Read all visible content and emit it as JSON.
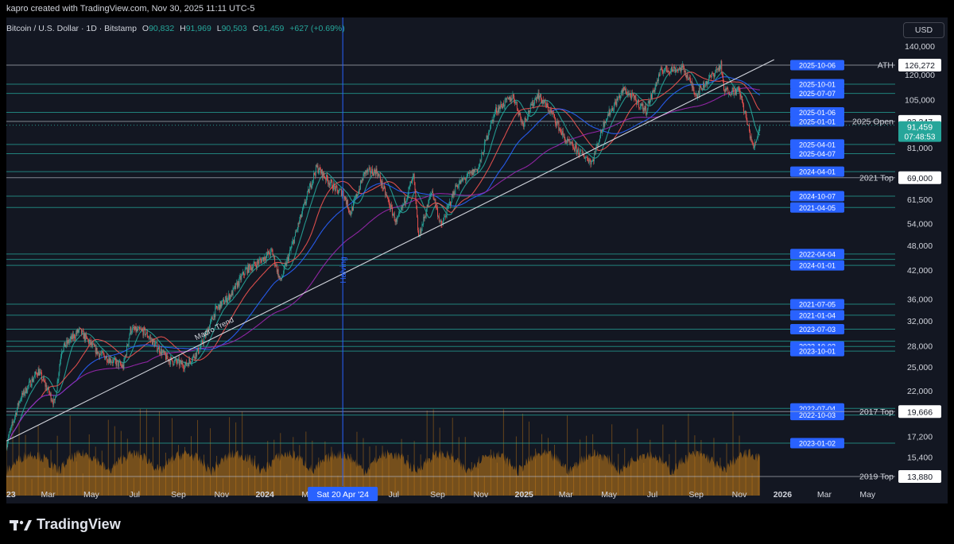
{
  "header": {
    "attribution": "kapro created with TradingView.com, Nov 30, 2025 11:11 UTC-5"
  },
  "legend": {
    "symbol": "Bitcoin / U.S. Dollar · 1D · Bitstamp",
    "o_label": "O",
    "o_val": "90,832",
    "h_label": "H",
    "h_val": "91,969",
    "l_label": "L",
    "l_val": "90,503",
    "c_label": "C",
    "c_val": "91,459",
    "change": "+627 (+0.69%)"
  },
  "currency_button": "USD",
  "brand": {
    "name": "TradingView"
  },
  "colors": {
    "up": "#26a69a",
    "down": "#ef5350",
    "bg": "#131722",
    "hline": "#26a69a",
    "tag": "#2962ff",
    "volume": "#c77d17",
    "trend": "#d1d4dc"
  },
  "chart_data": {
    "type": "candlestick",
    "title": "Bitcoin / U.S. Dollar · 1D · Bitstamp",
    "y_scale": "log",
    "ylim": [
      13000,
      150000
    ],
    "x_range": [
      "2023-01-01",
      "2026-05-31"
    ],
    "y_ticks": [
      "140,000",
      "120,000",
      "105,000",
      "81,000",
      "61,500",
      "54,000",
      "48,000",
      "42,000",
      "36,000",
      "32,000",
      "28,000",
      "25,000",
      "22,000",
      "17,200",
      "15,400"
    ],
    "x_ticks": [
      {
        "label": "2023",
        "date": "2023-01-01",
        "bold": true
      },
      {
        "label": "Mar",
        "date": "2023-03-01"
      },
      {
        "label": "May",
        "date": "2023-05-01"
      },
      {
        "label": "Jul",
        "date": "2023-07-01"
      },
      {
        "label": "Sep",
        "date": "2023-09-01"
      },
      {
        "label": "Nov",
        "date": "2023-11-01"
      },
      {
        "label": "2024",
        "date": "2024-01-01",
        "bold": true
      },
      {
        "label": "Ma",
        "date": "2024-03-01"
      },
      {
        "label": "Jul",
        "date": "2024-07-01"
      },
      {
        "label": "Sep",
        "date": "2024-09-01"
      },
      {
        "label": "Nov",
        "date": "2024-11-01"
      },
      {
        "label": "2025",
        "date": "2025-01-01",
        "bold": true
      },
      {
        "label": "Mar",
        "date": "2025-03-01"
      },
      {
        "label": "May",
        "date": "2025-05-01"
      },
      {
        "label": "Jul",
        "date": "2025-07-01"
      },
      {
        "label": "Sep",
        "date": "2025-09-01"
      },
      {
        "label": "Nov",
        "date": "2025-11-01"
      },
      {
        "label": "2026",
        "date": "2026-01-01",
        "bold": true
      },
      {
        "label": "Mar",
        "date": "2026-03-01"
      },
      {
        "label": "May",
        "date": "2026-05-01"
      }
    ],
    "price_path": [
      [
        "2023-01-01",
        16500
      ],
      [
        "2023-01-20",
        21000
      ],
      [
        "2023-02-15",
        24500
      ],
      [
        "2023-03-10",
        20500
      ],
      [
        "2023-03-20",
        27500
      ],
      [
        "2023-04-14",
        30400
      ],
      [
        "2023-05-10",
        27000
      ],
      [
        "2023-06-15",
        25000
      ],
      [
        "2023-06-25",
        30500
      ],
      [
        "2023-07-15",
        30200
      ],
      [
        "2023-08-17",
        26000
      ],
      [
        "2023-09-11",
        25200
      ],
      [
        "2023-10-01",
        27500
      ],
      [
        "2023-10-24",
        34000
      ],
      [
        "2023-11-15",
        37000
      ],
      [
        "2023-12-05",
        42000
      ],
      [
        "2023-12-20",
        43500
      ],
      [
        "2024-01-11",
        46500
      ],
      [
        "2024-01-23",
        39500
      ],
      [
        "2024-02-15",
        52000
      ],
      [
        "2024-03-05",
        66000
      ],
      [
        "2024-03-14",
        73000
      ],
      [
        "2024-04-13",
        64000
      ],
      [
        "2024-04-20",
        64000
      ],
      [
        "2024-05-01",
        57000
      ],
      [
        "2024-05-21",
        71000
      ],
      [
        "2024-06-07",
        71500
      ],
      [
        "2024-07-05",
        54000
      ],
      [
        "2024-07-29",
        69500
      ],
      [
        "2024-08-05",
        50000
      ],
      [
        "2024-08-24",
        64500
      ],
      [
        "2024-09-06",
        53000
      ],
      [
        "2024-09-27",
        66000
      ],
      [
        "2024-10-29",
        73000
      ],
      [
        "2024-11-12",
        89000
      ],
      [
        "2024-11-22",
        99000
      ],
      [
        "2024-12-17",
        107000
      ],
      [
        "2024-12-30",
        92000
      ],
      [
        "2025-01-20",
        108000
      ],
      [
        "2025-02-10",
        97000
      ],
      [
        "2025-03-01",
        84000
      ],
      [
        "2025-04-07",
        75000
      ],
      [
        "2025-04-25",
        94000
      ],
      [
        "2025-05-22",
        111000
      ],
      [
        "2025-06-22",
        99000
      ],
      [
        "2025-07-14",
        123000
      ],
      [
        "2025-08-14",
        124000
      ],
      [
        "2025-09-01",
        108000
      ],
      [
        "2025-10-06",
        126272
      ],
      [
        "2025-10-10",
        110000
      ],
      [
        "2025-11-01",
        110000
      ],
      [
        "2025-11-21",
        80500
      ],
      [
        "2025-11-30",
        91459
      ]
    ],
    "horizontal_levels": [
      {
        "price": 126272,
        "date": "2025-10-06",
        "label": "ATH",
        "price_label": "126,272"
      },
      {
        "price": 114000,
        "date": "2025-10-01"
      },
      {
        "price": 108500,
        "date": "2025-07-07"
      },
      {
        "price": 98000,
        "date": "2025-01-06"
      },
      {
        "price": 93347,
        "date": "2025-01-01",
        "label": "2025 Open",
        "price_label": "93,347"
      },
      {
        "price": 82500,
        "date": "2025-04-01"
      },
      {
        "price": 78500,
        "date": "2025-04-07"
      },
      {
        "price": 71300,
        "date": "2024-04-01"
      },
      {
        "price": 69000,
        "label": "2021 Top",
        "price_label": "69,000"
      },
      {
        "price": 62500,
        "date": "2024-10-07"
      },
      {
        "price": 58800,
        "date": "2021-04-05"
      },
      {
        "price": 45800,
        "date": "2022-04-04"
      },
      {
        "price": 44500
      },
      {
        "price": 43100,
        "date": "2024-01-01"
      },
      {
        "price": 35000,
        "date": "2021-07-05"
      },
      {
        "price": 33000,
        "date": "2021-01-04"
      },
      {
        "price": 30600,
        "date": "2023-07-03"
      },
      {
        "price": 28700
      },
      {
        "price": 27900,
        "date": "2023-10-02"
      },
      {
        "price": 27200,
        "date": "2023-10-01"
      },
      {
        "price": 20000,
        "date": "2022-07-04"
      },
      {
        "price": 19300,
        "date": "2022-10-03"
      },
      {
        "price": 19666,
        "label": "2017 Top",
        "price_label": "19,666"
      },
      {
        "price": 16600,
        "date": "2023-01-02"
      },
      {
        "price": 13880,
        "label": "2019 Top",
        "price_label": "13,880"
      }
    ],
    "current_price": {
      "value": "91,459",
      "countdown": "07:48:53"
    },
    "annotations": {
      "macro_trend": "Macro Trend",
      "halving": "Halving",
      "halving_date": "Sat 20 Apr '24"
    },
    "macro_trend": [
      [
        "2023-01-01",
        16800
      ],
      [
        "2025-12-20",
        130000
      ]
    ]
  }
}
